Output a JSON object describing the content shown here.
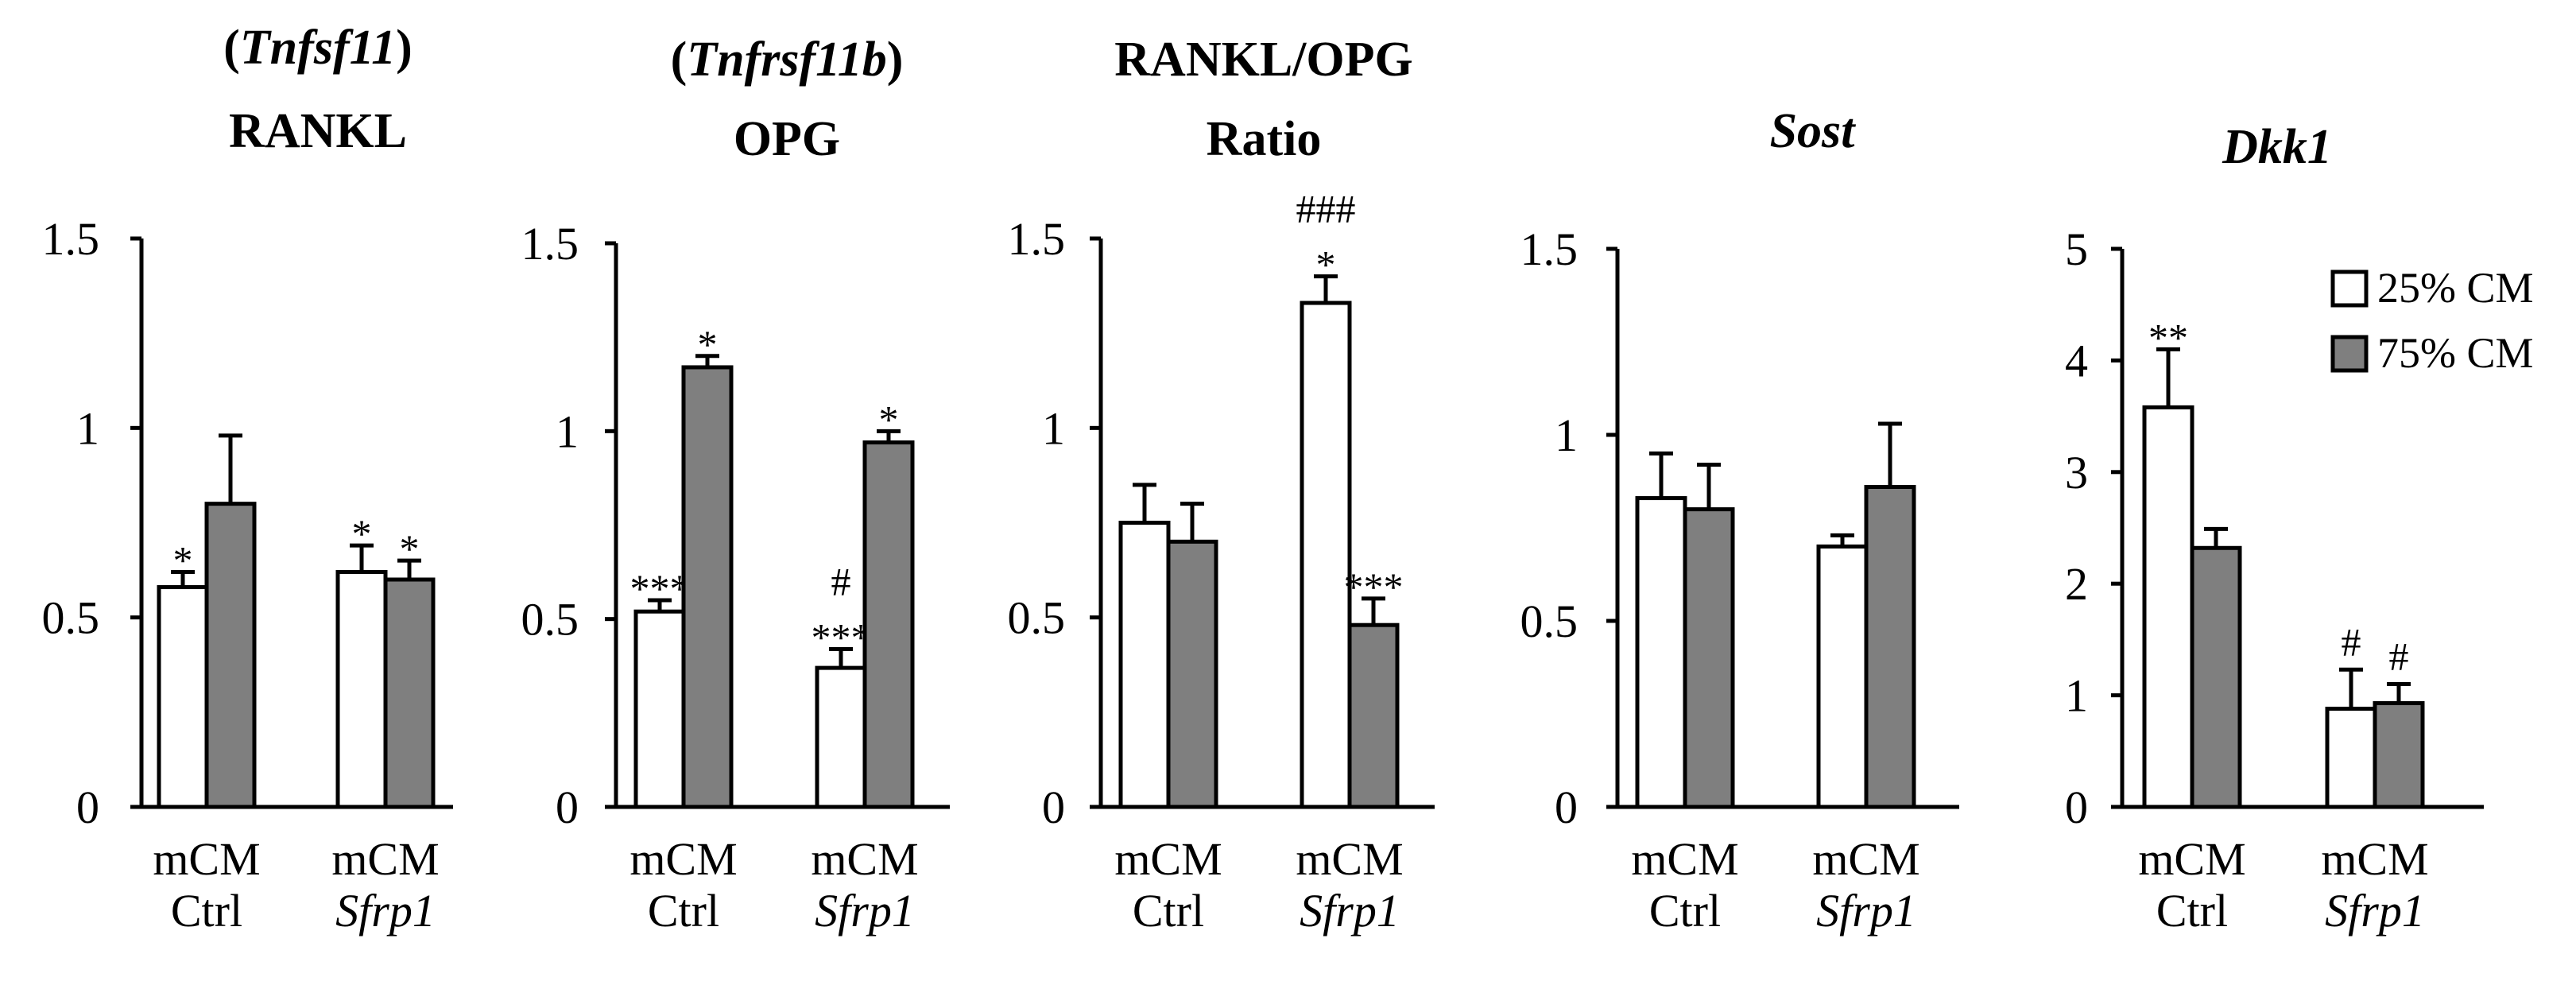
{
  "colors": {
    "white_bar": "#ffffff",
    "gray_bar": "#7f7f7f",
    "stroke": "#000000"
  },
  "legend": [
    {
      "label": "25% CM",
      "color": "#ffffff"
    },
    {
      "label": "75% CM",
      "color": "#7f7f7f"
    }
  ],
  "chart_data": [
    {
      "type": "bar",
      "title": [
        [
          {
            "text": "(",
            "italic": false
          },
          {
            "text": "Tnfsf11",
            "italic": true
          },
          {
            "text": ")",
            "italic": false
          }
        ],
        [
          {
            "text": "RANKL",
            "italic": false
          }
        ]
      ],
      "ylim": [
        0,
        1.5
      ],
      "yticks": [
        0,
        0.5,
        1,
        1.5
      ],
      "ytick_labels": [
        "0",
        "0.5",
        "1",
        "1.5"
      ],
      "categories": [
        {
          "line1": "mCM",
          "line2": "Ctrl",
          "italic2": false
        },
        {
          "line1": "mCM",
          "line2": "Sfrp1",
          "italic2": true
        }
      ],
      "series": [
        {
          "name": "25% CM",
          "values": [
            0.58,
            0.62
          ],
          "errors": [
            0.04,
            0.07
          ],
          "sig": [
            "*",
            "*"
          ],
          "sig_hash": [
            "",
            ""
          ]
        },
        {
          "name": "75% CM",
          "values": [
            0.8,
            0.6
          ],
          "errors": [
            0.18,
            0.05
          ],
          "sig": [
            "",
            "*"
          ],
          "sig_hash": [
            "",
            ""
          ]
        }
      ]
    },
    {
      "type": "bar",
      "title": [
        [
          {
            "text": "(",
            "italic": false
          },
          {
            "text": "Tnfrsf11b",
            "italic": true
          },
          {
            "text": ")",
            "italic": false
          }
        ],
        [
          {
            "text": "OPG",
            "italic": false
          }
        ]
      ],
      "ylim": [
        0,
        1.5
      ],
      "yticks": [
        0,
        0.5,
        1,
        1.5
      ],
      "ytick_labels": [
        "0",
        "0.5",
        "1",
        "1.5"
      ],
      "categories": [
        {
          "line1": "mCM",
          "line2": "Ctrl",
          "italic2": false
        },
        {
          "line1": "mCM",
          "line2": "Sfrp1",
          "italic2": true
        }
      ],
      "series": [
        {
          "name": "25% CM",
          "values": [
            0.52,
            0.37
          ],
          "errors": [
            0.03,
            0.05
          ],
          "sig": [
            "***",
            "***"
          ],
          "sig_hash": [
            "",
            "#"
          ]
        },
        {
          "name": "75% CM",
          "values": [
            1.17,
            0.97
          ],
          "errors": [
            0.03,
            0.03
          ],
          "sig": [
            "*",
            "*"
          ],
          "sig_hash": [
            "",
            ""
          ]
        }
      ]
    },
    {
      "type": "bar",
      "title": [
        [
          {
            "text": "RANKL/OPG",
            "italic": false
          }
        ],
        [
          {
            "text": "Ratio",
            "italic": false
          }
        ]
      ],
      "ylim": [
        0,
        1.5
      ],
      "yticks": [
        0,
        0.5,
        1,
        1.5
      ],
      "ytick_labels": [
        "0",
        "0.5",
        "1",
        "1.5"
      ],
      "categories": [
        {
          "line1": "mCM",
          "line2": "Ctrl",
          "italic2": false
        },
        {
          "line1": "mCM",
          "line2": "Sfrp1",
          "italic2": true
        }
      ],
      "series": [
        {
          "name": "25% CM",
          "values": [
            0.75,
            1.33
          ],
          "errors": [
            0.1,
            0.07
          ],
          "sig": [
            "",
            "*"
          ],
          "sig_hash": [
            "",
            "###"
          ]
        },
        {
          "name": "75% CM",
          "values": [
            0.7,
            0.48
          ],
          "errors": [
            0.1,
            0.07
          ],
          "sig": [
            "",
            "***"
          ],
          "sig_hash": [
            "",
            ""
          ]
        }
      ]
    },
    {
      "type": "bar",
      "title": [
        [
          {
            "text": "Sost",
            "italic": true
          }
        ]
      ],
      "ylim": [
        0,
        1.5
      ],
      "yticks": [
        0,
        0.5,
        1,
        1.5
      ],
      "ytick_labels": [
        "0",
        "0.5",
        "1",
        "1.5"
      ],
      "categories": [
        {
          "line1": "mCM",
          "line2": "Ctrl",
          "italic2": false
        },
        {
          "line1": "mCM",
          "line2": "Sfrp1",
          "italic2": true
        }
      ],
      "series": [
        {
          "name": "25% CM",
          "values": [
            0.83,
            0.7
          ],
          "errors": [
            0.12,
            0.03
          ],
          "sig": [
            "",
            ""
          ],
          "sig_hash": [
            "",
            ""
          ]
        },
        {
          "name": "75% CM",
          "values": [
            0.8,
            0.86
          ],
          "errors": [
            0.12,
            0.17
          ],
          "sig": [
            "",
            ""
          ],
          "sig_hash": [
            "",
            ""
          ]
        }
      ]
    },
    {
      "type": "bar",
      "title": [
        [
          {
            "text": "Dkk1",
            "italic": true
          }
        ]
      ],
      "ylim": [
        0,
        5
      ],
      "yticks": [
        0,
        1,
        2,
        3,
        4,
        5
      ],
      "ytick_labels": [
        "0",
        "1",
        "2",
        "3",
        "4",
        "5"
      ],
      "categories": [
        {
          "line1": "mCM",
          "line2": "Ctrl",
          "italic2": false
        },
        {
          "line1": "mCM",
          "line2": "Sfrp1",
          "italic2": true
        }
      ],
      "series": [
        {
          "name": "25% CM",
          "values": [
            3.58,
            0.88
          ],
          "errors": [
            0.52,
            0.35
          ],
          "sig": [
            "**",
            ""
          ],
          "sig_hash": [
            "",
            "#"
          ]
        },
        {
          "name": "75% CM",
          "values": [
            2.32,
            0.93
          ],
          "errors": [
            0.17,
            0.17
          ],
          "sig": [
            "",
            ""
          ],
          "sig_hash": [
            "",
            "#"
          ]
        }
      ]
    }
  ]
}
